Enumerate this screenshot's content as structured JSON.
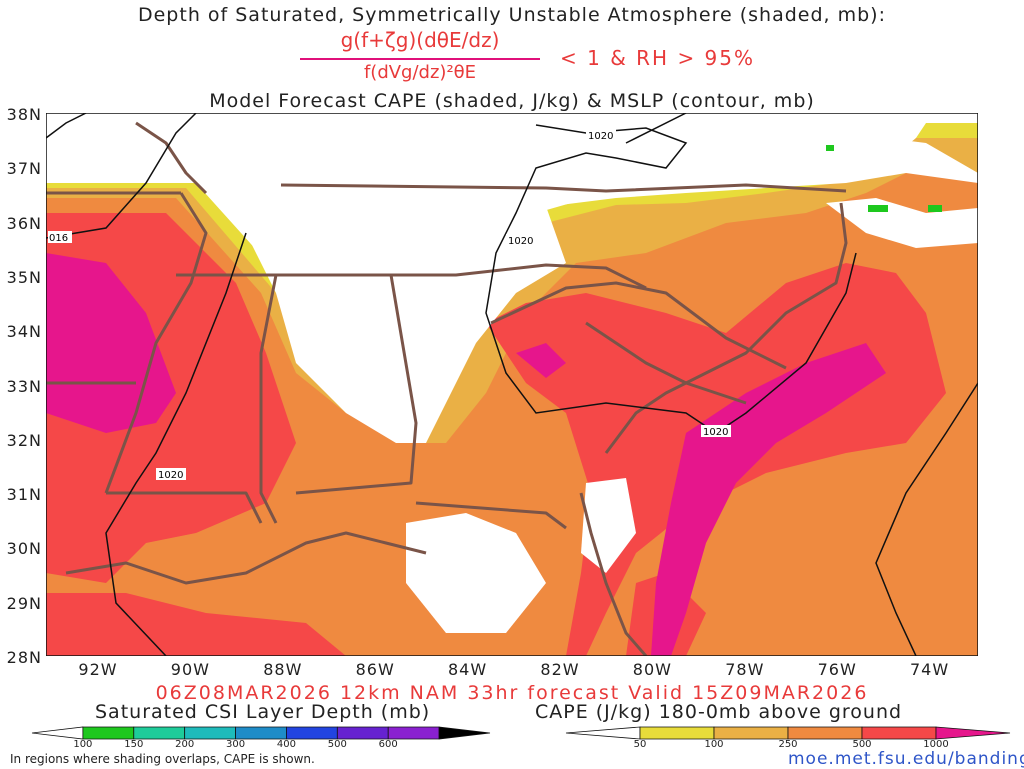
{
  "header": {
    "title": "Depth of Saturated, Symmetrically Unstable Atmosphere (shaded, mb):",
    "formula_numerator": "g(f+ζg)(dθE/dz)",
    "formula_denominator": "f(dVg/dz)²θE",
    "condition": "< 1 & RH > 95%",
    "subtitle": "Model Forecast CAPE (shaded, J/kg) & MSLP (contour, mb)"
  },
  "map": {
    "lat_labels": [
      "38N",
      "37N",
      "36N",
      "35N",
      "34N",
      "33N",
      "32N",
      "31N",
      "30N",
      "29N",
      "28N"
    ],
    "lon_labels": [
      "92W",
      "90W",
      "88W",
      "86W",
      "84W",
      "82W",
      "80W",
      "78W",
      "76W",
      "74W"
    ],
    "isobar_labels": [
      "1020",
      "1020",
      "016",
      "1020",
      "1020"
    ],
    "colors": {
      "cape_50": "#e8dc3a",
      "cape_100": "#eab045",
      "cape_250": "#ef8a40",
      "cape_500": "#f54848",
      "cape_1000": "#e6168c",
      "borders": "#7a5448",
      "isobar": "#111111"
    }
  },
  "footer": {
    "run_info": "06Z08MAR2026 12km NAM 33hr forecast Valid 15Z09MAR2026",
    "csi_bar_title": "Saturated CSI Layer Depth (mb)",
    "csi_ticks": [
      "100",
      "150",
      "200",
      "300",
      "400",
      "500",
      "600"
    ],
    "csi_colors": [
      "#ffffff",
      "#1ec81e",
      "#1ecc9a",
      "#1ebbbb",
      "#1e8cc8",
      "#2244e0",
      "#6622d0",
      "#8a20d0",
      "#000000"
    ],
    "cape_bar_title": "CAPE (J/kg) 180-0mb above ground",
    "cape_ticks": [
      "50",
      "100",
      "250",
      "500",
      "1000"
    ],
    "cape_colors": [
      "#ffffff",
      "#e8dc3a",
      "#eab045",
      "#ef8a40",
      "#f54848",
      "#e6168c"
    ],
    "note": "In regions where shading overlaps, CAPE is shown.",
    "url": "moe.met.fsu.edu/banding"
  }
}
